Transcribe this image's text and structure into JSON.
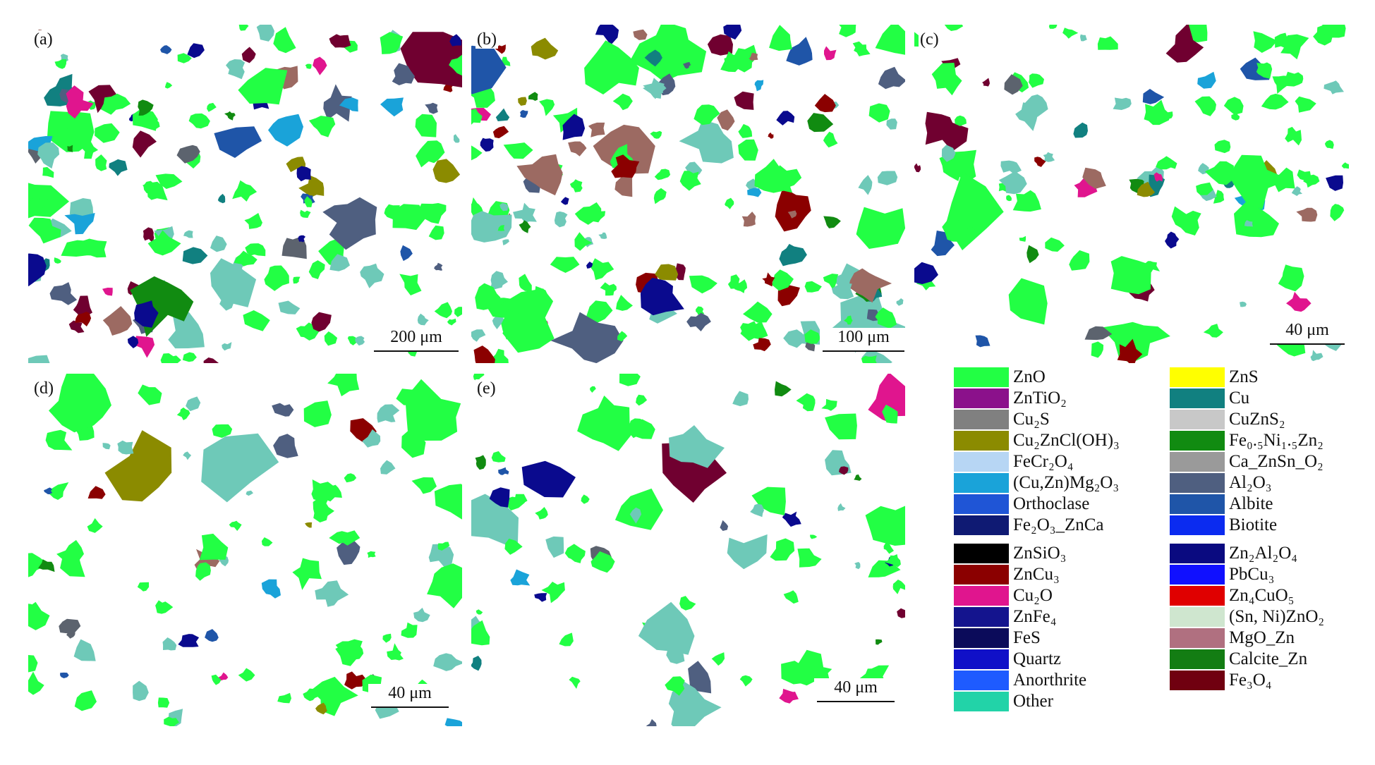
{
  "panels": [
    {
      "id": "a",
      "label": "(a)",
      "scale": "200 μm"
    },
    {
      "id": "b",
      "label": "(b)",
      "scale": "100 μm"
    },
    {
      "id": "c",
      "label": "(c)",
      "scale": "40 μm"
    },
    {
      "id": "d",
      "label": "(d)",
      "scale": "40 μm"
    },
    {
      "id": "e",
      "label": "(e)",
      "scale": "40 μm"
    }
  ],
  "legend": {
    "left": [
      {
        "name": "ZnO",
        "color": "#22ff44"
      },
      {
        "name": "ZnTiO₂",
        "color": "#8b118b"
      },
      {
        "name": "Cu₂S",
        "color": "#808080"
      },
      {
        "name": "Cu₂ZnCl(OH)₃",
        "color": "#8b8b00"
      },
      {
        "name": "FeCr₂O₄",
        "color": "#b7d6f4"
      },
      {
        "name": "(Cu,Zn)Mg₂O₃",
        "color": "#1aa3d9"
      },
      {
        "name": "Orthoclase",
        "color": "#1f55d6"
      },
      {
        "name": "Fe₂O₃_ZnCa",
        "color": "#0f1a73"
      },
      {
        "name": "ZnSiO₃",
        "color": "#000000"
      },
      {
        "name": "ZnCu₃",
        "color": "#8b0000"
      },
      {
        "name": "Cu₂O",
        "color": "#e0158e"
      },
      {
        "name": "ZnFe₄",
        "color": "#14148e"
      },
      {
        "name": "FeS",
        "color": "#0b0b5a"
      },
      {
        "name": "Quartz",
        "color": "#1010c8"
      },
      {
        "name": "Anorthrite",
        "color": "#1e5bff"
      },
      {
        "name": "Other",
        "color": "#22d3a8"
      }
    ],
    "right": [
      {
        "name": "ZnS",
        "color": "#ffff00"
      },
      {
        "name": "Cu",
        "color": "#118080"
      },
      {
        "name": "CuZnS₂",
        "color": "#c8c8c8"
      },
      {
        "name": "Fe₀.₅Ni₁.₅Zn₂",
        "color": "#118b11"
      },
      {
        "name": "Ca_ZnSn_O₂",
        "color": "#9a9a9a"
      },
      {
        "name": "Al₂O₃",
        "color": "#4f5f80"
      },
      {
        "name": "Albite",
        "color": "#1f55a8"
      },
      {
        "name": "Biotite",
        "color": "#0b2bf0"
      },
      {
        "name": "Zn₂Al₂O₄",
        "color": "#0a0a80"
      },
      {
        "name": "PbCu₃",
        "color": "#1010ff"
      },
      {
        "name": "Zn₄CuO₅",
        "color": "#e00000"
      },
      {
        "name": "(Sn, Ni)ZnO₂",
        "color": "#cfe6cf"
      },
      {
        "name": "MgO_Zn",
        "color": "#b07080"
      },
      {
        "name": "Calcite_Zn",
        "color": "#137d13"
      },
      {
        "name": "Fe₃O₄",
        "color": "#700010"
      }
    ]
  },
  "particle_colors": [
    "#22ff44",
    "#6ec9b8",
    "#0a0a8e",
    "#1f55a8",
    "#8b0000",
    "#9c6a62",
    "#5c636e",
    "#e0158e",
    "#118080",
    "#118b11",
    "#1aa3d9",
    "#700030",
    "#8b8b00",
    "#4f5f80"
  ]
}
